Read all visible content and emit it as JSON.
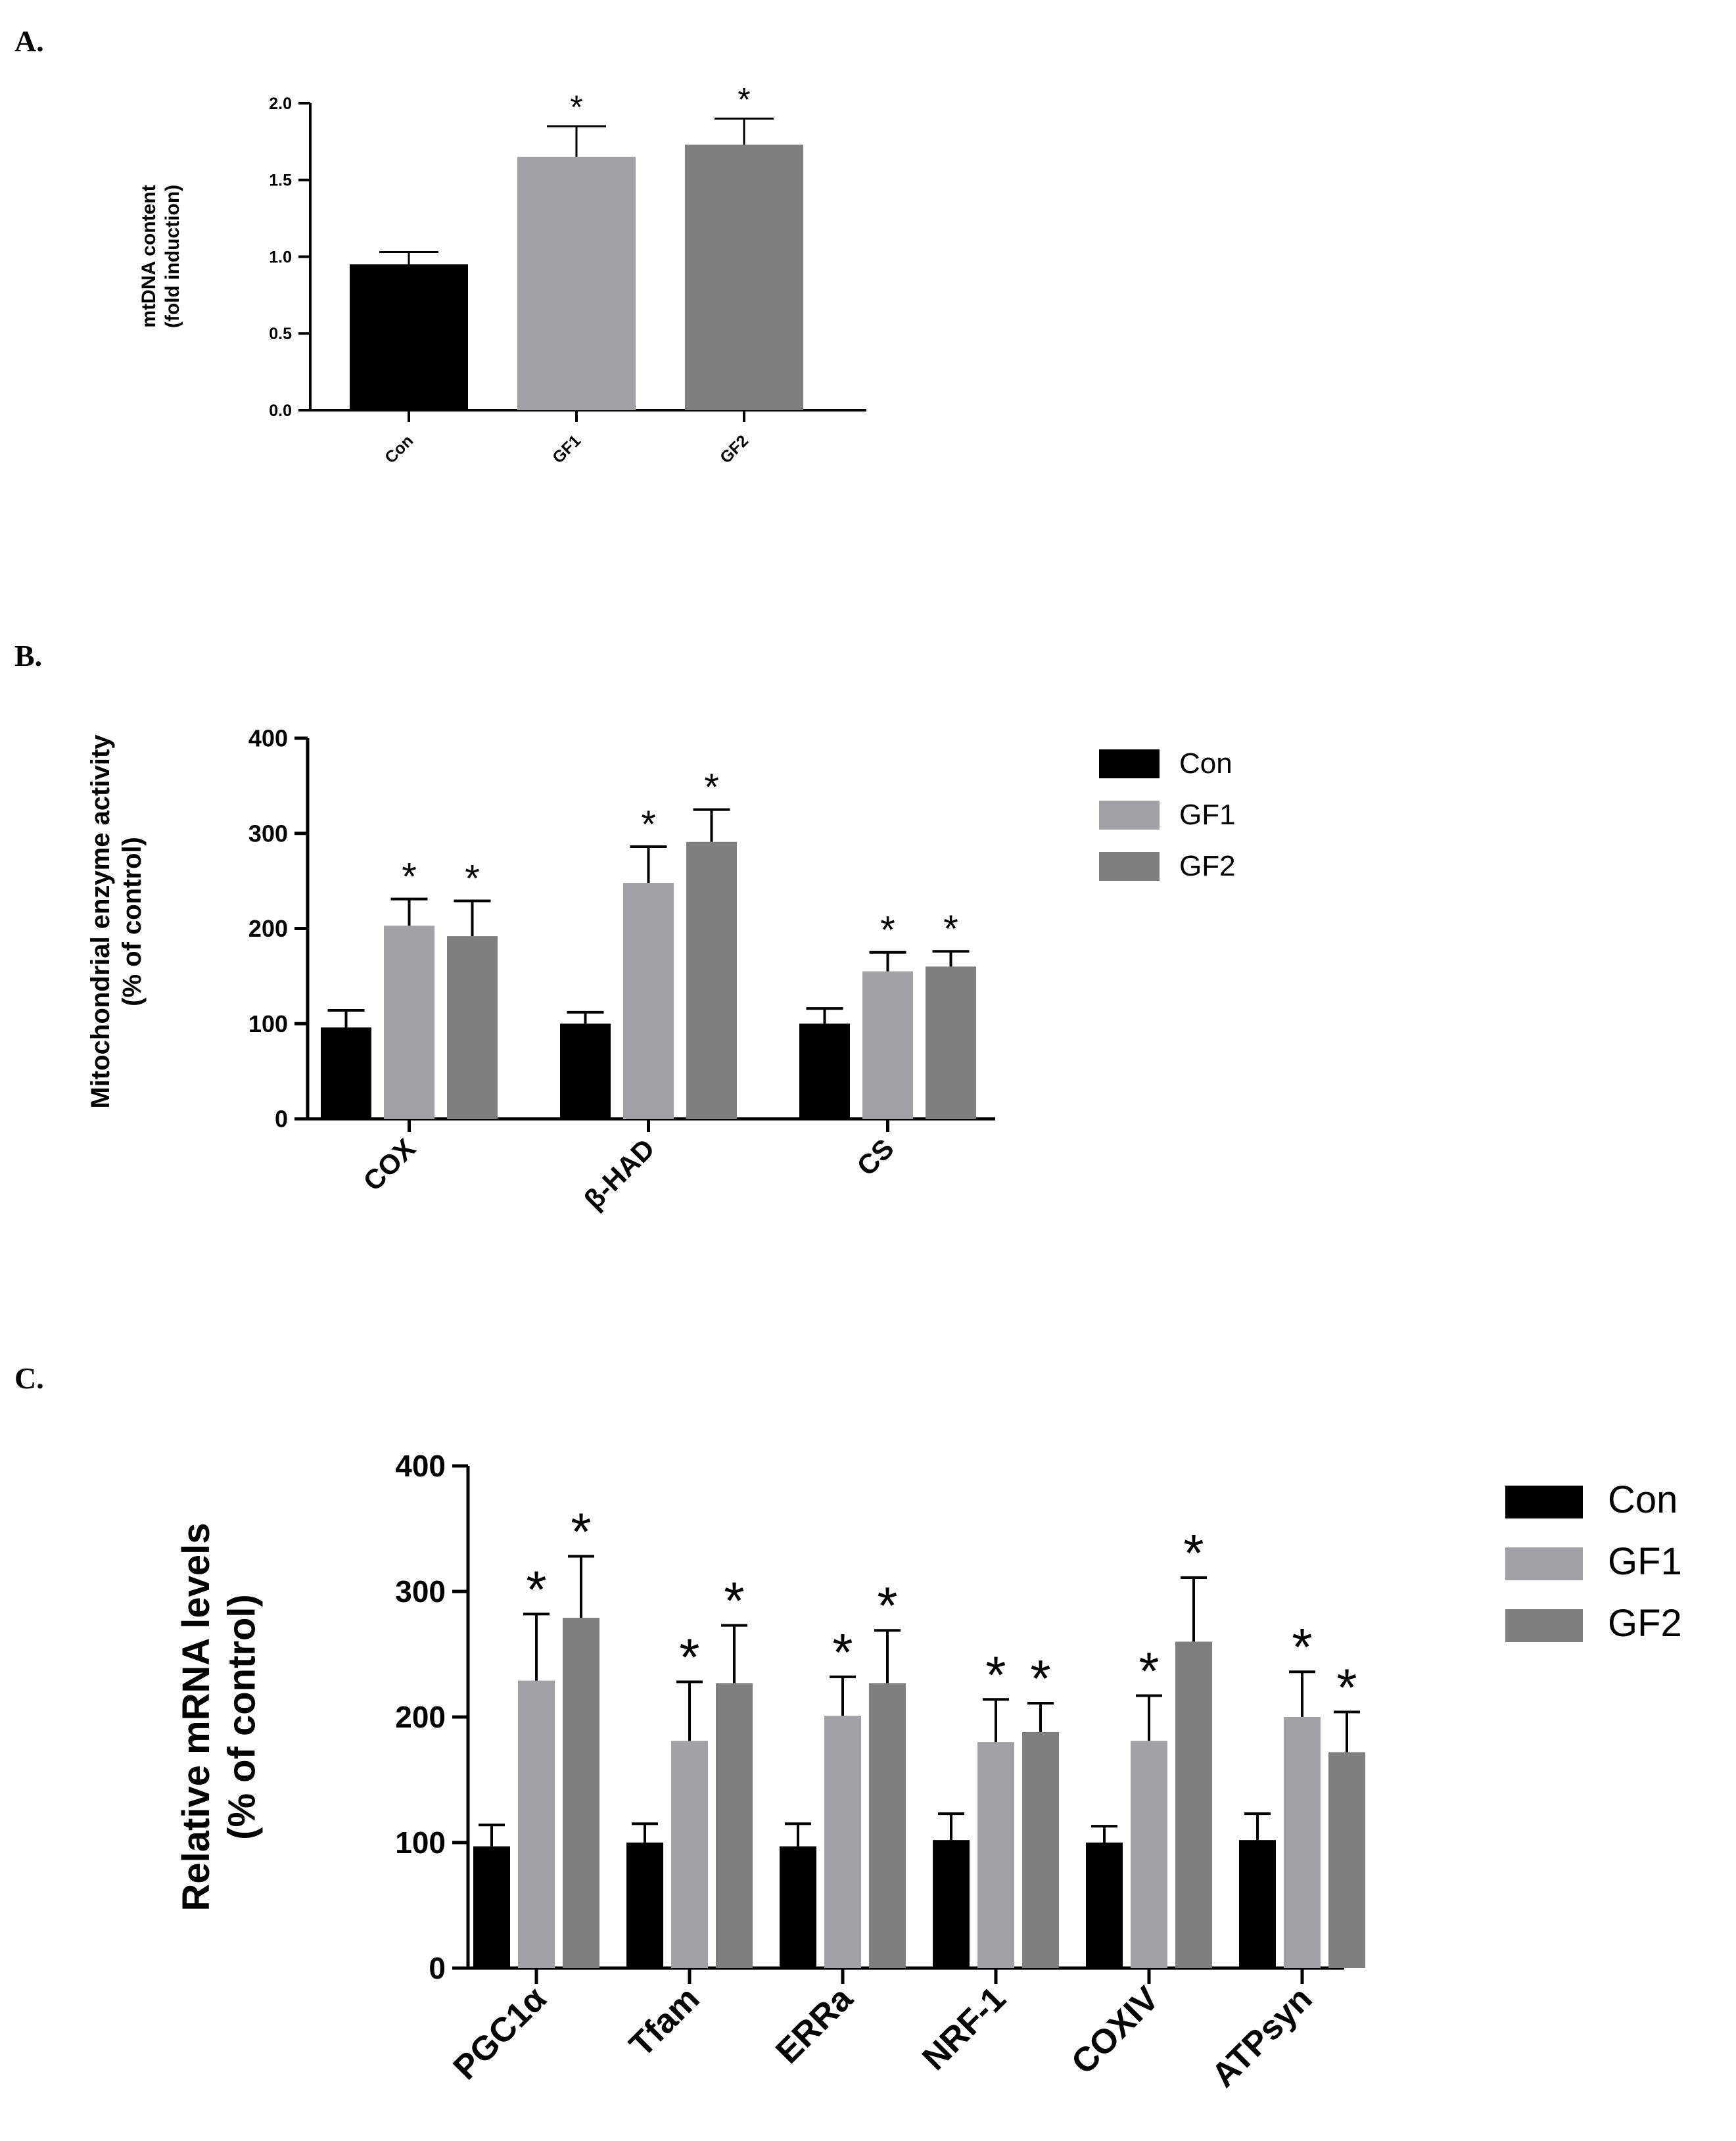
{
  "colors": {
    "Con": "#000000",
    "GF1": "#a2a2a6",
    "GF2": "#7f7f80"
  },
  "chart_data": [
    {
      "panel": "A.",
      "type": "bar",
      "categories": [
        "Con",
        "GF1",
        "GF2"
      ],
      "values": [
        0.95,
        1.65,
        1.73
      ],
      "errors": [
        0.08,
        0.2,
        0.17
      ],
      "significant": [
        false,
        true,
        true
      ],
      "ylabel": [
        "mtDNA content",
        "(fold induction)"
      ],
      "yticks": [
        "0.0",
        "0.5",
        "1.0",
        "1.5",
        "2.0"
      ],
      "ylim": [
        0,
        2.0
      ]
    },
    {
      "panel": "B.",
      "type": "bar",
      "categories": [
        "COX",
        "β-HAD",
        "CS"
      ],
      "series": [
        {
          "name": "Con",
          "values": [
            96,
            100,
            100
          ],
          "errors": [
            18,
            12,
            16
          ],
          "significant": [
            false,
            false,
            false
          ]
        },
        {
          "name": "GF1",
          "values": [
            203,
            248,
            155
          ],
          "errors": [
            28,
            38,
            20
          ],
          "significant": [
            true,
            true,
            true
          ]
        },
        {
          "name": "GF2",
          "values": [
            192,
            291,
            160
          ],
          "errors": [
            37,
            34,
            16
          ],
          "significant": [
            true,
            true,
            true
          ]
        }
      ],
      "ylabel": [
        "Mitochondrial enzyme activity",
        "(% of control)"
      ],
      "yticks": [
        "0",
        "100",
        "200",
        "300",
        "400"
      ],
      "ylim": [
        0,
        400
      ],
      "legend": [
        "Con",
        "GF1",
        "GF2"
      ]
    },
    {
      "panel": "C.",
      "type": "bar",
      "categories": [
        "PGC1α",
        "Tfam",
        "ERRa",
        "NRF-1",
        "COXIV",
        "ATPsyn"
      ],
      "series": [
        {
          "name": "Con",
          "values": [
            97,
            100,
            97,
            102,
            100,
            102
          ],
          "errors": [
            17,
            15,
            18,
            21,
            13,
            21
          ],
          "significant": [
            false,
            false,
            false,
            false,
            false,
            false
          ]
        },
        {
          "name": "GF1",
          "values": [
            229,
            181,
            201,
            180,
            181,
            200
          ],
          "errors": [
            53,
            47,
            31,
            34,
            36,
            36
          ],
          "significant": [
            true,
            true,
            true,
            true,
            true,
            true
          ]
        },
        {
          "name": "GF2",
          "values": [
            279,
            227,
            227,
            188,
            260,
            172
          ],
          "errors": [
            49,
            46,
            42,
            23,
            51,
            32
          ],
          "significant": [
            true,
            true,
            true,
            true,
            true,
            true
          ]
        }
      ],
      "ylabel": [
        "Relative mRNA levels",
        "(% of control)"
      ],
      "yticks": [
        "0",
        "100",
        "200",
        "300",
        "400"
      ],
      "ylim": [
        0,
        400
      ],
      "legend": [
        "Con",
        "GF1",
        "GF2"
      ]
    }
  ]
}
